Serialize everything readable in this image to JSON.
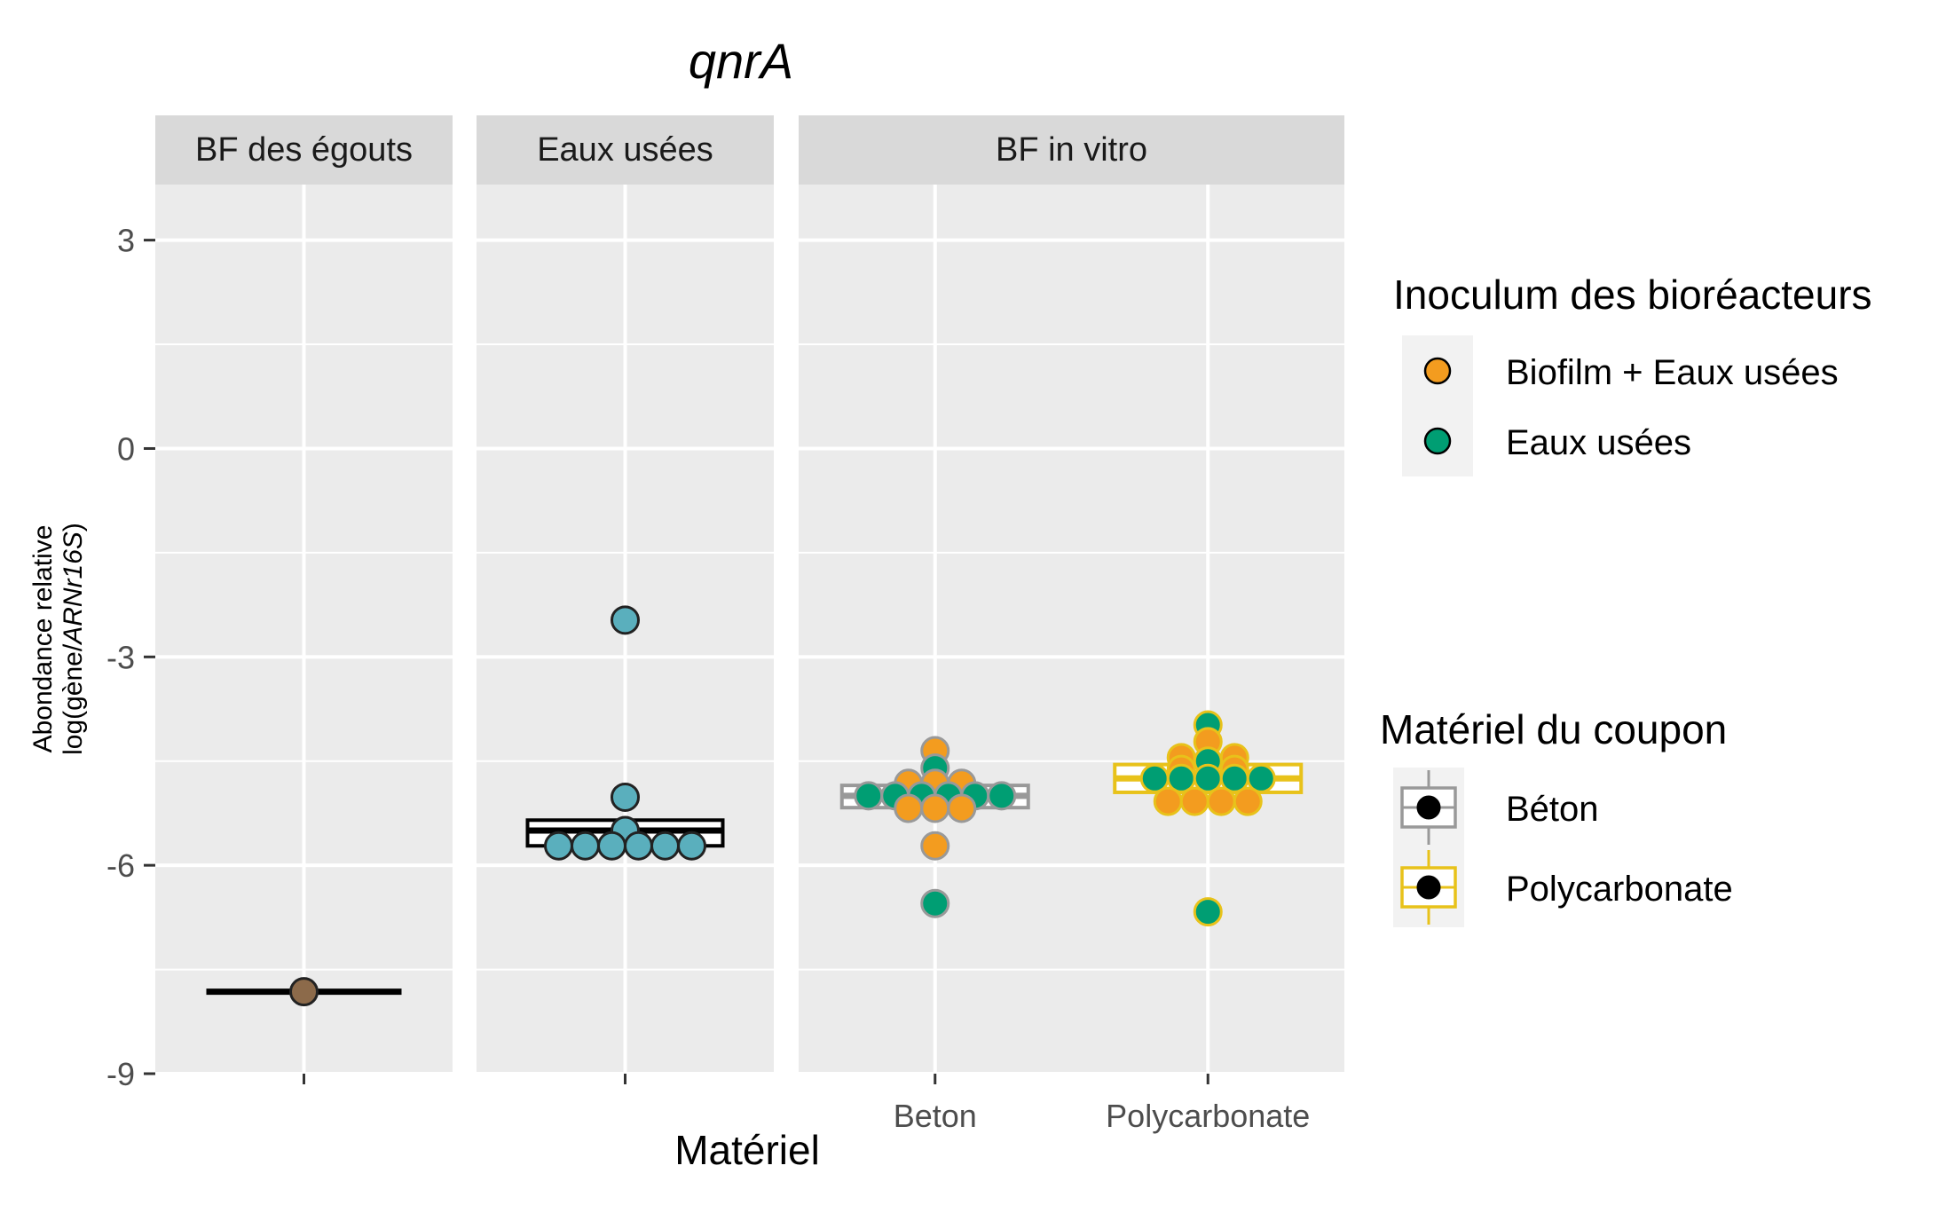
{
  "chart_data": {
    "type": "boxplot-dotplot",
    "title": "qnrA",
    "xlabel": "Matériel",
    "ylabel_line1": "Abondance relative",
    "ylabel_line2_prefix": "log(gène/",
    "ylabel_line2_italic": "ARNr16S",
    "ylabel_line2_suffix": ")",
    "ylim": [
      -9,
      3.8
    ],
    "y_ticks": [
      3,
      0,
      -3,
      -6,
      -9
    ],
    "grid": true,
    "facets": [
      {
        "label": "BF des égouts",
        "categories": [
          ""
        ],
        "boxes": [
          {
            "category": "",
            "q1": -7.82,
            "median": -7.82,
            "q3": -7.82,
            "whisker_low": -7.82,
            "whisker_high": -7.82,
            "color": "#000000"
          }
        ],
        "points": [
          {
            "category": "",
            "offset": 0,
            "y": -7.82,
            "fill": "#8c6a4a",
            "stroke": "#222222"
          }
        ]
      },
      {
        "label": "Eaux usées",
        "categories": [
          ""
        ],
        "boxes": [
          {
            "category": "",
            "q1": -5.72,
            "median": -5.5,
            "q3": -5.35,
            "whisker_low": -5.72,
            "whisker_high": -5.35,
            "color": "#000000"
          }
        ],
        "points": [
          {
            "category": "",
            "offset": 0,
            "y": -2.47,
            "fill": "#5aafbd",
            "stroke": "#222222"
          },
          {
            "category": "",
            "offset": 0,
            "y": -5.02,
            "fill": "#5aafbd",
            "stroke": "#222222"
          },
          {
            "category": "",
            "offset": 0,
            "y": -5.5,
            "fill": "#5aafbd",
            "stroke": "#222222"
          },
          {
            "category": "",
            "offset": -2.5,
            "y": -5.72,
            "fill": "#5aafbd",
            "stroke": "#222222"
          },
          {
            "category": "",
            "offset": -1.5,
            "y": -5.72,
            "fill": "#5aafbd",
            "stroke": "#222222"
          },
          {
            "category": "",
            "offset": -0.5,
            "y": -5.72,
            "fill": "#5aafbd",
            "stroke": "#222222"
          },
          {
            "category": "",
            "offset": 0.5,
            "y": -5.72,
            "fill": "#5aafbd",
            "stroke": "#222222"
          },
          {
            "category": "",
            "offset": 1.5,
            "y": -5.72,
            "fill": "#5aafbd",
            "stroke": "#222222"
          },
          {
            "category": "",
            "offset": 2.5,
            "y": -5.72,
            "fill": "#5aafbd",
            "stroke": "#222222"
          }
        ]
      },
      {
        "label": "BF in vitro",
        "categories": [
          "Beton",
          "Polycarbonate"
        ],
        "boxes": [
          {
            "category": "Beton",
            "q1": -5.17,
            "median": -5.0,
            "q3": -4.85,
            "whisker_low": -5.17,
            "whisker_high": -4.85,
            "color": "#999999"
          },
          {
            "category": "Polycarbonate",
            "q1": -4.95,
            "median": -4.75,
            "q3": -4.55,
            "whisker_low": -4.95,
            "whisker_high": -4.55,
            "color": "#e8c21a"
          }
        ],
        "points": [
          {
            "category": "Beton",
            "offset": 0,
            "y": -4.35,
            "fill": "#f39c1f",
            "stroke": "#999999"
          },
          {
            "category": "Beton",
            "offset": 0,
            "y": -4.6,
            "fill": "#009e73",
            "stroke": "#999999"
          },
          {
            "category": "Beton",
            "offset": -1,
            "y": -4.82,
            "fill": "#f39c1f",
            "stroke": "#999999"
          },
          {
            "category": "Beton",
            "offset": 0,
            "y": -4.82,
            "fill": "#f39c1f",
            "stroke": "#999999"
          },
          {
            "category": "Beton",
            "offset": 1,
            "y": -4.82,
            "fill": "#f39c1f",
            "stroke": "#999999"
          },
          {
            "category": "Beton",
            "offset": -2.5,
            "y": -5.0,
            "fill": "#009e73",
            "stroke": "#999999"
          },
          {
            "category": "Beton",
            "offset": -1.5,
            "y": -5.0,
            "fill": "#009e73",
            "stroke": "#999999"
          },
          {
            "category": "Beton",
            "offset": -0.5,
            "y": -5.0,
            "fill": "#009e73",
            "stroke": "#999999"
          },
          {
            "category": "Beton",
            "offset": 0.5,
            "y": -5.0,
            "fill": "#009e73",
            "stroke": "#999999"
          },
          {
            "category": "Beton",
            "offset": 1.5,
            "y": -5.0,
            "fill": "#009e73",
            "stroke": "#999999"
          },
          {
            "category": "Beton",
            "offset": 2.5,
            "y": -5.0,
            "fill": "#009e73",
            "stroke": "#999999"
          },
          {
            "category": "Beton",
            "offset": -1,
            "y": -5.18,
            "fill": "#f39c1f",
            "stroke": "#999999"
          },
          {
            "category": "Beton",
            "offset": 0,
            "y": -5.18,
            "fill": "#f39c1f",
            "stroke": "#999999"
          },
          {
            "category": "Beton",
            "offset": 1,
            "y": -5.18,
            "fill": "#f39c1f",
            "stroke": "#999999"
          },
          {
            "category": "Beton",
            "offset": 0,
            "y": -5.72,
            "fill": "#f39c1f",
            "stroke": "#999999"
          },
          {
            "category": "Beton",
            "offset": 0,
            "y": -6.55,
            "fill": "#009e73",
            "stroke": "#999999"
          },
          {
            "category": "Polycarbonate",
            "offset": 0,
            "y": -3.98,
            "fill": "#009e73",
            "stroke": "#e8c21a"
          },
          {
            "category": "Polycarbonate",
            "offset": 0,
            "y": -4.22,
            "fill": "#f39c1f",
            "stroke": "#e8c21a"
          },
          {
            "category": "Polycarbonate",
            "offset": -1,
            "y": -4.45,
            "fill": "#f39c1f",
            "stroke": "#e8c21a"
          },
          {
            "category": "Polycarbonate",
            "offset": 0,
            "y": -4.5,
            "fill": "#009e73",
            "stroke": "#e8c21a"
          },
          {
            "category": "Polycarbonate",
            "offset": 1,
            "y": -4.45,
            "fill": "#f39c1f",
            "stroke": "#e8c21a"
          },
          {
            "category": "Polycarbonate",
            "offset": -1,
            "y": -4.62,
            "fill": "#f39c1f",
            "stroke": "#e8c21a"
          },
          {
            "category": "Polycarbonate",
            "offset": 1,
            "y": -4.62,
            "fill": "#f39c1f",
            "stroke": "#e8c21a"
          },
          {
            "category": "Polycarbonate",
            "offset": -2,
            "y": -4.75,
            "fill": "#009e73",
            "stroke": "#e8c21a"
          },
          {
            "category": "Polycarbonate",
            "offset": -1,
            "y": -4.75,
            "fill": "#009e73",
            "stroke": "#e8c21a"
          },
          {
            "category": "Polycarbonate",
            "offset": 0,
            "y": -4.75,
            "fill": "#009e73",
            "stroke": "#e8c21a"
          },
          {
            "category": "Polycarbonate",
            "offset": 1,
            "y": -4.75,
            "fill": "#009e73",
            "stroke": "#e8c21a"
          },
          {
            "category": "Polycarbonate",
            "offset": 2,
            "y": -4.75,
            "fill": "#009e73",
            "stroke": "#e8c21a"
          },
          {
            "category": "Polycarbonate",
            "offset": -1.5,
            "y": -5.08,
            "fill": "#f39c1f",
            "stroke": "#e8c21a"
          },
          {
            "category": "Polycarbonate",
            "offset": -0.5,
            "y": -5.08,
            "fill": "#f39c1f",
            "stroke": "#e8c21a"
          },
          {
            "category": "Polycarbonate",
            "offset": 0.5,
            "y": -5.08,
            "fill": "#f39c1f",
            "stroke": "#e8c21a"
          },
          {
            "category": "Polycarbonate",
            "offset": 1.5,
            "y": -5.08,
            "fill": "#f39c1f",
            "stroke": "#e8c21a"
          },
          {
            "category": "Polycarbonate",
            "offset": 0,
            "y": -6.67,
            "fill": "#009e73",
            "stroke": "#e8c21a"
          }
        ]
      }
    ],
    "legends": [
      {
        "title": "Inoculum des bioréacteurs",
        "kind": "point",
        "entries": [
          {
            "label": "Biofilm + Eaux usées",
            "color": "#f39c1f"
          },
          {
            "label": "Eaux usées",
            "color": "#009e73"
          }
        ]
      },
      {
        "title": "Matériel du coupon",
        "kind": "box",
        "entries": [
          {
            "label": "Béton",
            "color": "#999999"
          },
          {
            "label": "Polycarbonate",
            "color": "#e8c21a"
          }
        ]
      }
    ]
  }
}
